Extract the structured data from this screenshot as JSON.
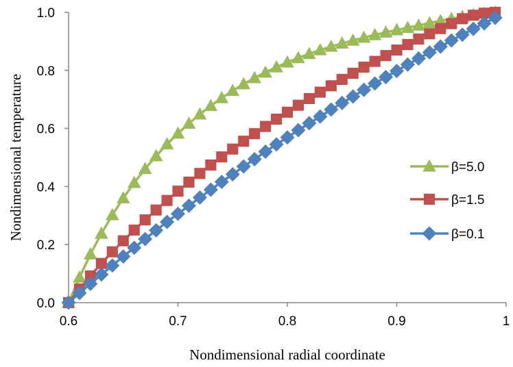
{
  "chart_data": {
    "type": "line",
    "xlabel": "Nondimensional radial coordinate",
    "ylabel": "Nondimensional temperature",
    "xlim": [
      0.6,
      1.0
    ],
    "ylim": [
      0.0,
      1.0
    ],
    "x_ticks": [
      "0.6",
      "0.7",
      "0.8",
      "0.9",
      "1"
    ],
    "y_ticks": [
      "0.0",
      "0.2",
      "0.4",
      "0.6",
      "0.8",
      "1.0"
    ],
    "grid": false,
    "legend_position": "right",
    "x": [
      0.6,
      0.61,
      0.62,
      0.63,
      0.64,
      0.65,
      0.66,
      0.67,
      0.68,
      0.69,
      0.7,
      0.71,
      0.72,
      0.73,
      0.74,
      0.75,
      0.76,
      0.77,
      0.78,
      0.79,
      0.8,
      0.81,
      0.82,
      0.83,
      0.84,
      0.85,
      0.86,
      0.87,
      0.88,
      0.89,
      0.9,
      0.91,
      0.92,
      0.93,
      0.94,
      0.95,
      0.96,
      0.97,
      0.98,
      0.99
    ],
    "series": [
      {
        "name": "β=5.0",
        "color": "#9bbb59",
        "marker": "triangle",
        "values": [
          0.0,
          0.087,
          0.167,
          0.238,
          0.302,
          0.36,
          0.413,
          0.461,
          0.505,
          0.546,
          0.583,
          0.617,
          0.649,
          0.678,
          0.705,
          0.73,
          0.753,
          0.774,
          0.793,
          0.811,
          0.828,
          0.843,
          0.857,
          0.87,
          0.882,
          0.893,
          0.903,
          0.913,
          0.922,
          0.931,
          0.939,
          0.947,
          0.955,
          0.963,
          0.971,
          0.978,
          0.985,
          0.991,
          0.996,
          1.0
        ]
      },
      {
        "name": "β=1.5",
        "color": "#c0504d",
        "marker": "square",
        "values": [
          0.0,
          0.047,
          0.092,
          0.135,
          0.175,
          0.213,
          0.25,
          0.285,
          0.319,
          0.352,
          0.384,
          0.415,
          0.445,
          0.474,
          0.502,
          0.529,
          0.556,
          0.582,
          0.607,
          0.632,
          0.656,
          0.68,
          0.703,
          0.725,
          0.747,
          0.769,
          0.79,
          0.811,
          0.831,
          0.851,
          0.87,
          0.889,
          0.908,
          0.926,
          0.944,
          0.961,
          0.978,
          0.99,
          0.997,
          1.0
        ]
      },
      {
        "name": "β=0.1",
        "color": "#4f81bd",
        "marker": "diamond",
        "values": [
          0.0,
          0.033,
          0.065,
          0.097,
          0.128,
          0.159,
          0.189,
          0.219,
          0.249,
          0.278,
          0.306,
          0.334,
          0.362,
          0.389,
          0.416,
          0.442,
          0.469,
          0.494,
          0.52,
          0.545,
          0.569,
          0.594,
          0.618,
          0.641,
          0.665,
          0.688,
          0.71,
          0.733,
          0.755,
          0.777,
          0.798,
          0.82,
          0.841,
          0.862,
          0.882,
          0.903,
          0.923,
          0.943,
          0.962,
          0.981
        ]
      }
    ]
  }
}
